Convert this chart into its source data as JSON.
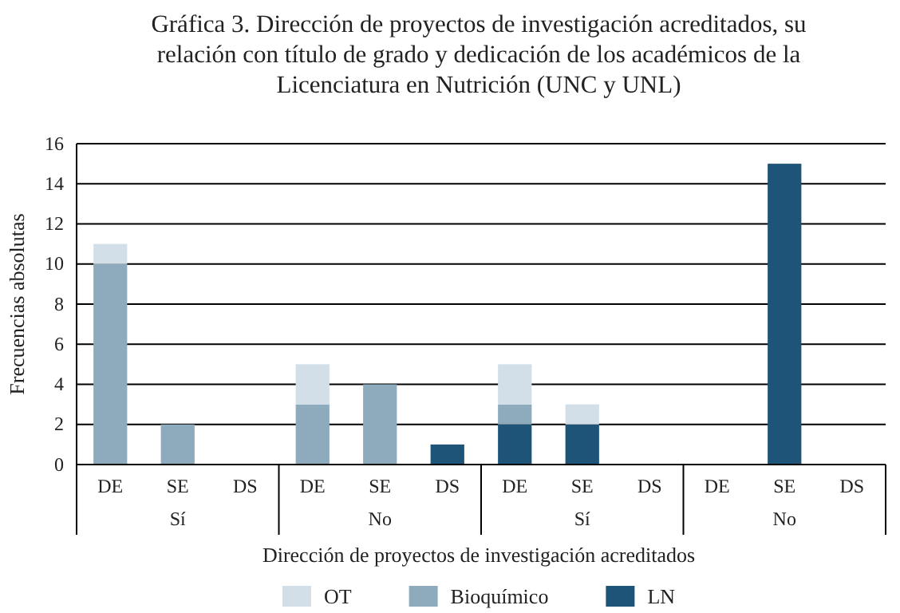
{
  "chart_data": {
    "type": "bar",
    "stacked": true,
    "title": "Gráfica 3. Dirección de proyectos de investigación acreditados, su relación con título de grado y dedicación de los académicos de la Licenciatura en Nutrición (UNC y UNL)",
    "xlabel": "Dirección de proyectos de investigación acreditados",
    "ylabel": "Frecuencias absolutas",
    "categories": [
      "DE",
      "SE",
      "DS",
      "DE",
      "SE",
      "DS",
      "DE",
      "SE",
      "DS",
      "DE",
      "SE",
      "DS"
    ],
    "annotations": [
      "Sí",
      "No",
      "Sí",
      "No"
    ],
    "series": [
      {
        "name": "LN",
        "color": "#1d5478",
        "values": [
          0,
          0,
          0,
          0,
          0,
          1,
          2,
          2,
          0,
          0,
          15,
          0
        ]
      },
      {
        "name": "Bioquímico",
        "color": "#8eaabd",
        "values": [
          10,
          2,
          0,
          3,
          4,
          0,
          1,
          0,
          0,
          0,
          0,
          0
        ]
      },
      {
        "name": "OT",
        "color": "#d3dfe8",
        "values": [
          1,
          0,
          0,
          2,
          0,
          0,
          2,
          1,
          0,
          0,
          0,
          0
        ]
      }
    ],
    "ylim": [
      0,
      16
    ],
    "yticks": [
      0,
      2,
      4,
      6,
      8,
      10,
      12,
      14,
      16
    ],
    "grid": "y",
    "legend": "bottom"
  }
}
